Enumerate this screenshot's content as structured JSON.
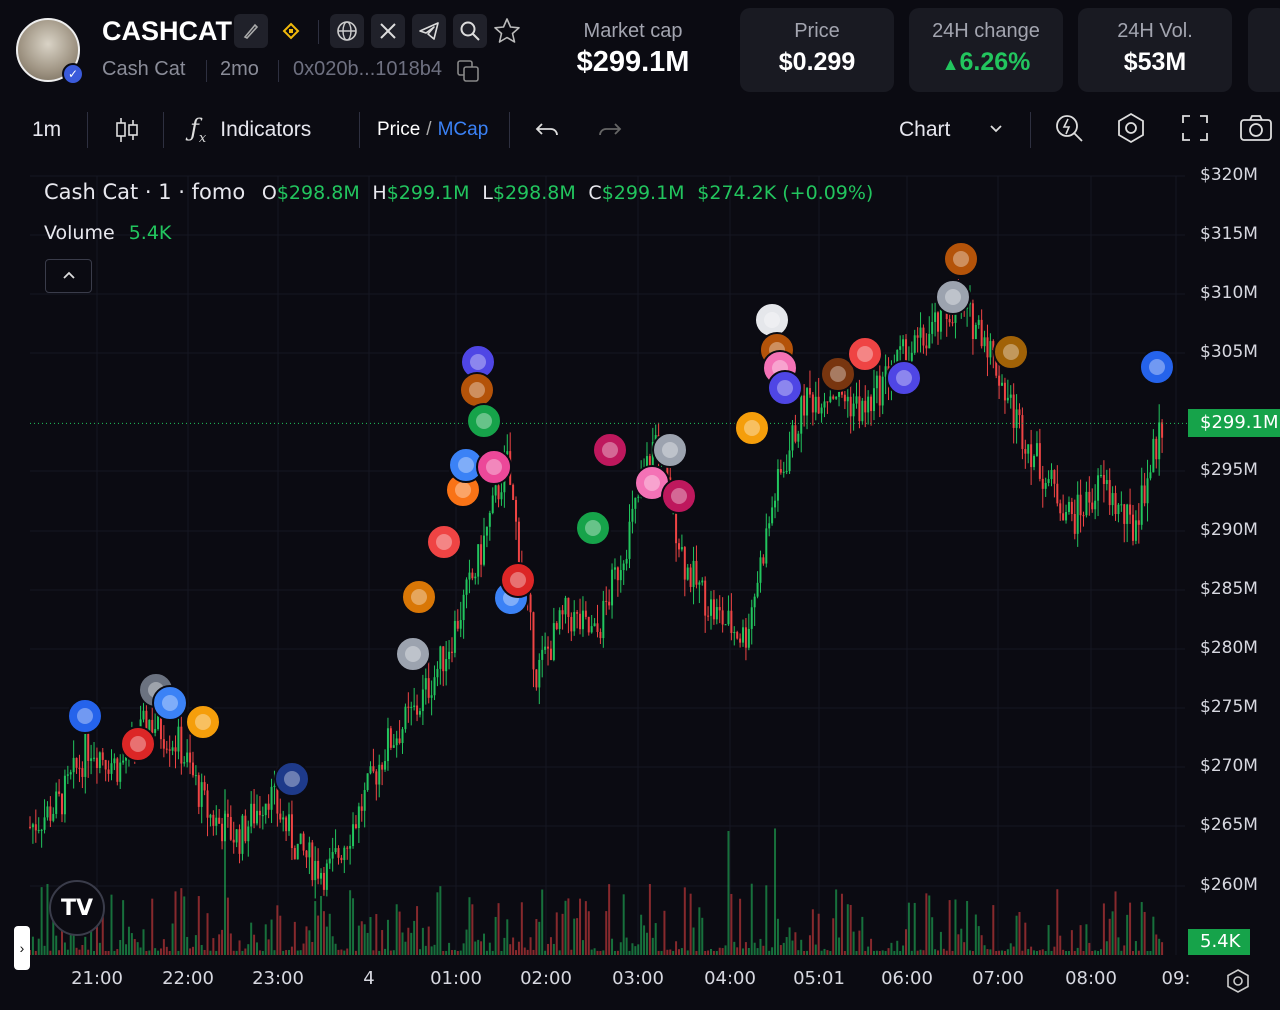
{
  "header": {
    "ticker": "CASHCAT",
    "name": "Cash Cat",
    "age": "2mo",
    "address": "0x020b...1018b4",
    "stats": [
      {
        "label": "Market cap",
        "value": "$299.1M"
      },
      {
        "label": "Price",
        "value": "$0.299"
      },
      {
        "label": "24H change",
        "value": "6.26%",
        "color": "#22c55e",
        "direction": "up"
      },
      {
        "label": "24H Vol.",
        "value": "$53M"
      }
    ],
    "icons": [
      "edit-icon",
      "chain-icon",
      "globe-icon",
      "x-icon",
      "telegram-icon",
      "search-icon",
      "star-icon",
      "copy-icon"
    ]
  },
  "toolbar": {
    "interval": "1m",
    "indicators": "Indicators",
    "price": "Price",
    "slash": "/",
    "mcap": "MCap",
    "chart": "Chart"
  },
  "legend": {
    "title": "Cash Cat · 1 · fomo",
    "o_key": "O",
    "o": "$298.8M",
    "h_key": "H",
    "h": "$299.1M",
    "l_key": "L",
    "l": "$298.8M",
    "c_key": "C",
    "c": "$299.1M",
    "change": "$274.2K (+0.09%)",
    "volume_label": "Volume",
    "volume": "5.4K"
  },
  "price_axis": [
    "$320M",
    "$315M",
    "$310M",
    "$305M",
    "$295M",
    "$290M",
    "$285M",
    "$280M",
    "$275M",
    "$270M",
    "$265M",
    "$260M"
  ],
  "current_price_tag": "$299.1M",
  "current_volume_tag": "5.4K",
  "time_axis": [
    "21:00",
    "22:00",
    "23:00",
    "4",
    "01:00",
    "02:00",
    "03:00",
    "04:00",
    "05:01",
    "06:00",
    "07:00",
    "08:00",
    "09:"
  ],
  "colors": {
    "up": "#22c55e",
    "down": "#ef4444",
    "accent": "#3b82f6",
    "bg": "#0b0b12"
  },
  "chart_data": {
    "type": "candlestick",
    "ylim": [
      258,
      322
    ],
    "unit": "$M",
    "x": [
      "20:20",
      "20:40",
      "21:00",
      "21:20",
      "21:40",
      "22:00",
      "22:20",
      "22:40",
      "23:00",
      "23:20",
      "23:40",
      "00:00",
      "00:20",
      "00:40",
      "01:00",
      "01:20",
      "01:40",
      "02:00",
      "02:20",
      "02:40",
      "03:00",
      "03:20",
      "03:40",
      "04:00",
      "04:20",
      "04:40",
      "05:01",
      "05:20",
      "05:40",
      "06:00",
      "06:20",
      "06:40",
      "07:00",
      "07:20",
      "07:40",
      "08:00",
      "08:20",
      "08:40",
      "09:00"
    ],
    "close": [
      265,
      267,
      272,
      270,
      274,
      272,
      266,
      264,
      268,
      263,
      261,
      266,
      272,
      275,
      280,
      287,
      296,
      278,
      283,
      281,
      289,
      298,
      287,
      283,
      281,
      293,
      301,
      302,
      300,
      304,
      306,
      309,
      307,
      300,
      295,
      291,
      294,
      290,
      299.1
    ]
  }
}
